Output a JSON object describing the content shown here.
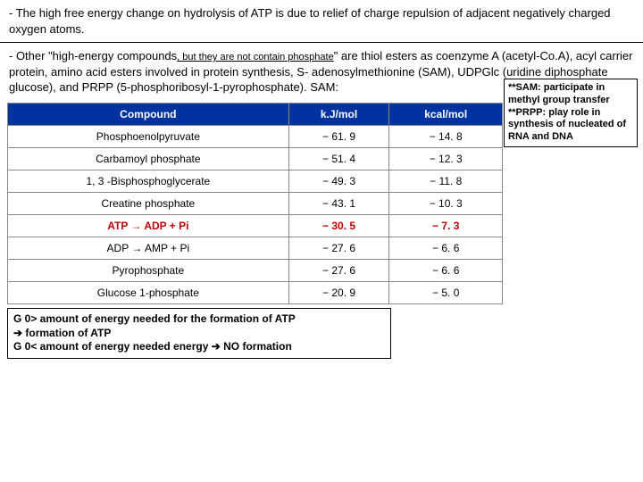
{
  "para1": "- The high free energy change on hydrolysis of ATP is due to relief of charge repulsion of adjacent negatively charged oxygen atoms.",
  "para2_a": "- Other \"high-energy compounds",
  "para2_b": ", but they are not contain phosphate",
  "para2_c": "\" are thiol esters as coenzyme A (acetyl-Co.A), acyl carrier protein, amino acid esters involved in protein synthesis, S- adenosylmethionine (SAM), UDPGlc (uridine diphosphate glucose), and PRPP (5-phosphoribosyl-1-pyrophosphate). SAM:",
  "callout": {
    "l1": "**SAM: participate in methyl group transfer",
    "l2": "**PRPP: play role in synthesis of nucleated of RNA and DNA"
  },
  "table": {
    "headers": [
      "Compound",
      "k.J/mol",
      "kcal/mol"
    ],
    "rows": [
      {
        "c": "Phosphoenolpyruvate",
        "kj": "− 61. 9",
        "kc": "− 14. 8",
        "hl": false
      },
      {
        "c": "Carbamoyl phosphate",
        "kj": "− 51. 4",
        "kc": "− 12. 3",
        "hl": false
      },
      {
        "c": "1, 3 -Bisphosphoglycerate",
        "kj": "− 49. 3",
        "kc": "− 11. 8",
        "hl": false
      },
      {
        "c": "Creatine phosphate",
        "kj": "− 43. 1",
        "kc": "− 10. 3",
        "hl": false
      },
      {
        "c": "ATP → ADP + Pi",
        "kj": "− 30. 5",
        "kc": "− 7. 3",
        "hl": true
      },
      {
        "c": "ADP → AMP + Pi",
        "kj": "− 27. 6",
        "kc": "− 6. 6",
        "hl": false
      },
      {
        "c": "Pyrophosphate",
        "kj": "− 27. 6",
        "kc": "− 6. 6",
        "hl": false
      },
      {
        "c": "Glucose 1-phosphate",
        "kj": "− 20. 9",
        "kc": "− 5. 0",
        "hl": false
      }
    ]
  },
  "footer": {
    "l1": "G 0> amount of energy needed for the formation of ATP",
    "l2": "➔ formation of ATP",
    "l3": "G 0< amount of energy needed energy ➔ NO formation"
  }
}
